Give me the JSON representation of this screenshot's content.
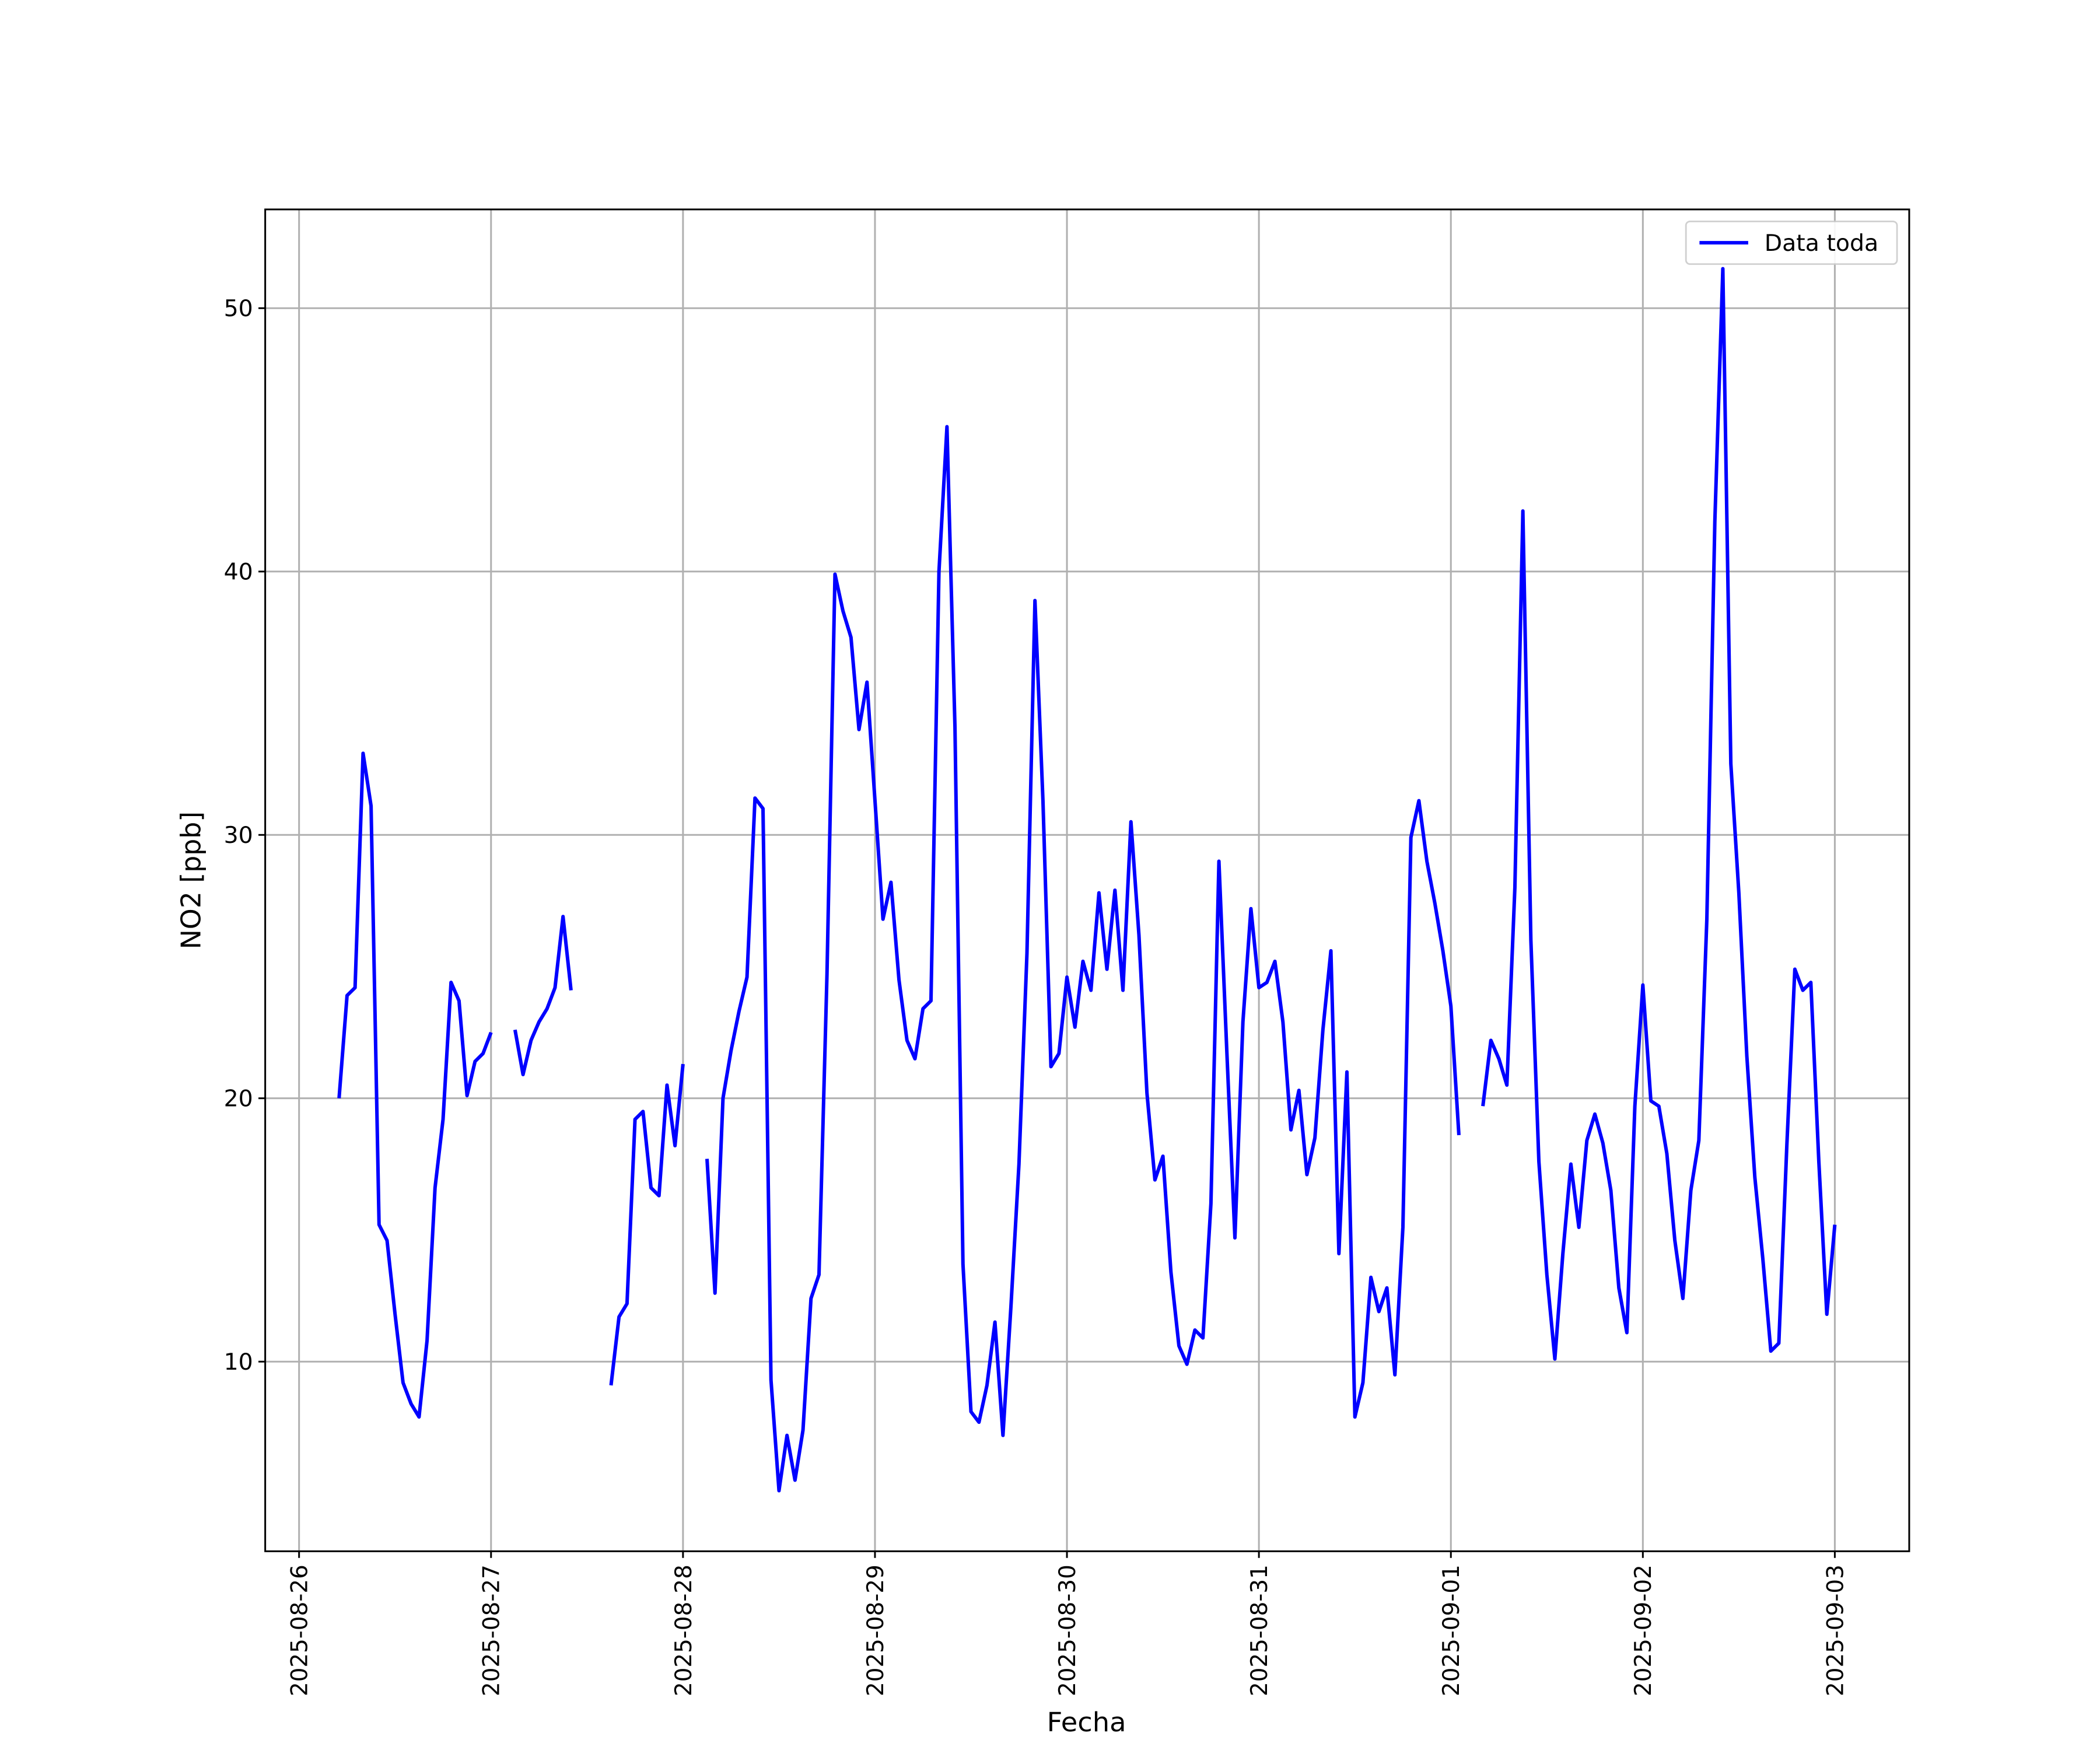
{
  "chart_data": {
    "type": "line",
    "xlabel": "Fecha",
    "ylabel": "NO2 [ppb]",
    "x": [
      "2025-08-26 05:00",
      "2025-08-26 06:00",
      "2025-08-26 07:00",
      "2025-08-26 08:00",
      "2025-08-26 09:00",
      "2025-08-26 10:00",
      "2025-08-26 11:00",
      "2025-08-26 12:00",
      "2025-08-26 13:00",
      "2025-08-26 14:00",
      "2025-08-26 15:00",
      "2025-08-26 16:00",
      "2025-08-26 17:00",
      "2025-08-26 18:00",
      "2025-08-26 19:00",
      "2025-08-26 20:00",
      "2025-08-26 21:00",
      "2025-08-26 22:00",
      "2025-08-26 23:00",
      "2025-08-27 00:00",
      "2025-08-27 01:00",
      "2025-08-27 02:00",
      "2025-08-27 03:00",
      "2025-08-27 04:00",
      "2025-08-27 05:00",
      "2025-08-27 06:00",
      "2025-08-27 07:00",
      "2025-08-27 08:00",
      "2025-08-27 09:00",
      "2025-08-27 10:00",
      "2025-08-27 11:00",
      "2025-08-27 12:00",
      "2025-08-27 13:00",
      "2025-08-27 14:00",
      "2025-08-27 15:00",
      "2025-08-27 16:00",
      "2025-08-27 17:00",
      "2025-08-27 18:00",
      "2025-08-27 19:00",
      "2025-08-27 20:00",
      "2025-08-27 21:00",
      "2025-08-27 22:00",
      "2025-08-27 23:00",
      "2025-08-28 00:00",
      "2025-08-28 01:00",
      "2025-08-28 02:00",
      "2025-08-28 03:00",
      "2025-08-28 04:00",
      "2025-08-28 05:00",
      "2025-08-28 06:00",
      "2025-08-28 07:00",
      "2025-08-28 08:00",
      "2025-08-28 09:00",
      "2025-08-28 10:00",
      "2025-08-28 11:00",
      "2025-08-28 12:00",
      "2025-08-28 13:00",
      "2025-08-28 14:00",
      "2025-08-28 15:00",
      "2025-08-28 16:00",
      "2025-08-28 17:00",
      "2025-08-28 18:00",
      "2025-08-28 19:00",
      "2025-08-28 20:00",
      "2025-08-28 21:00",
      "2025-08-28 22:00",
      "2025-08-28 23:00",
      "2025-08-29 00:00",
      "2025-08-29 01:00",
      "2025-08-29 02:00",
      "2025-08-29 03:00",
      "2025-08-29 04:00",
      "2025-08-29 05:00",
      "2025-08-29 06:00",
      "2025-08-29 07:00",
      "2025-08-29 08:00",
      "2025-08-29 09:00",
      "2025-08-29 10:00",
      "2025-08-29 11:00",
      "2025-08-29 12:00",
      "2025-08-29 13:00",
      "2025-08-29 14:00",
      "2025-08-29 15:00",
      "2025-08-29 16:00",
      "2025-08-29 17:00",
      "2025-08-29 18:00",
      "2025-08-29 19:00",
      "2025-08-29 20:00",
      "2025-08-29 21:00",
      "2025-08-29 22:00",
      "2025-08-29 23:00",
      "2025-08-30 00:00",
      "2025-08-30 01:00",
      "2025-08-30 02:00",
      "2025-08-30 03:00",
      "2025-08-30 04:00",
      "2025-08-30 05:00",
      "2025-08-30 06:00",
      "2025-08-30 07:00",
      "2025-08-30 08:00",
      "2025-08-30 09:00",
      "2025-08-30 10:00",
      "2025-08-30 11:00",
      "2025-08-30 12:00",
      "2025-08-30 13:00",
      "2025-08-30 14:00",
      "2025-08-30 15:00",
      "2025-08-30 16:00",
      "2025-08-30 17:00",
      "2025-08-30 18:00",
      "2025-08-30 19:00",
      "2025-08-30 20:00",
      "2025-08-30 21:00",
      "2025-08-30 22:00",
      "2025-08-30 23:00",
      "2025-08-31 00:00",
      "2025-08-31 01:00",
      "2025-08-31 02:00",
      "2025-08-31 03:00",
      "2025-08-31 04:00",
      "2025-08-31 05:00",
      "2025-08-31 06:00",
      "2025-08-31 07:00",
      "2025-08-31 08:00",
      "2025-08-31 09:00",
      "2025-08-31 10:00",
      "2025-08-31 11:00",
      "2025-08-31 12:00",
      "2025-08-31 13:00",
      "2025-08-31 14:00",
      "2025-08-31 15:00",
      "2025-08-31 16:00",
      "2025-08-31 17:00",
      "2025-08-31 18:00",
      "2025-08-31 19:00",
      "2025-08-31 20:00",
      "2025-08-31 21:00",
      "2025-08-31 22:00",
      "2025-08-31 23:00",
      "2025-09-01 00:00",
      "2025-09-01 01:00",
      "2025-09-01 02:00",
      "2025-09-01 03:00",
      "2025-09-01 04:00",
      "2025-09-01 05:00",
      "2025-09-01 06:00",
      "2025-09-01 07:00",
      "2025-09-01 08:00",
      "2025-09-01 09:00",
      "2025-09-01 10:00",
      "2025-09-01 11:00",
      "2025-09-01 12:00",
      "2025-09-01 13:00",
      "2025-09-01 14:00",
      "2025-09-01 15:00",
      "2025-09-01 16:00",
      "2025-09-01 17:00",
      "2025-09-01 18:00",
      "2025-09-01 19:00",
      "2025-09-01 20:00",
      "2025-09-01 21:00",
      "2025-09-01 22:00",
      "2025-09-01 23:00",
      "2025-09-02 00:00",
      "2025-09-02 01:00",
      "2025-09-02 02:00",
      "2025-09-02 03:00",
      "2025-09-02 04:00",
      "2025-09-02 05:00",
      "2025-09-02 06:00",
      "2025-09-02 07:00",
      "2025-09-02 08:00",
      "2025-09-02 09:00",
      "2025-09-02 10:00",
      "2025-09-02 11:00",
      "2025-09-02 12:00",
      "2025-09-02 13:00",
      "2025-09-02 14:00",
      "2025-09-02 15:00",
      "2025-09-02 16:00",
      "2025-09-02 17:00",
      "2025-09-02 18:00",
      "2025-09-02 19:00",
      "2025-09-02 20:00",
      "2025-09-02 21:00",
      "2025-09-02 22:00",
      "2025-09-02 23:00",
      "2025-09-03 00:00"
    ],
    "series": [
      {
        "name": "Data toda",
        "color": "#0000ff",
        "values": [
          20.0,
          23.9,
          24.2,
          33.1,
          31.1,
          15.2,
          14.6,
          11.8,
          9.2,
          8.4,
          7.9,
          10.8,
          16.6,
          19.2,
          24.4,
          23.7,
          20.1,
          21.4,
          21.7,
          22.5,
          null,
          null,
          22.6,
          20.9,
          22.2,
          22.9,
          23.4,
          24.2,
          26.9,
          24.1,
          null,
          null,
          null,
          null,
          9.1,
          11.7,
          12.2,
          19.2,
          19.5,
          16.6,
          16.3,
          20.5,
          18.2,
          21.3,
          null,
          null,
          17.7,
          12.6,
          20.0,
          21.8,
          23.3,
          24.6,
          31.4,
          31.0,
          9.3,
          5.1,
          7.2,
          5.5,
          7.4,
          12.4,
          13.3,
          24.7,
          39.9,
          38.5,
          37.5,
          34.0,
          35.8,
          31.3,
          26.8,
          28.2,
          24.5,
          22.2,
          21.5,
          23.4,
          23.7,
          40.0,
          45.5,
          34.1,
          13.7,
          8.1,
          7.7,
          9.1,
          11.5,
          7.2,
          12.1,
          17.5,
          25.5,
          38.9,
          31.3,
          21.2,
          21.7,
          24.6,
          22.7,
          25.2,
          24.1,
          27.8,
          24.9,
          27.9,
          24.1,
          30.5,
          26.2,
          20.2,
          16.9,
          17.8,
          13.4,
          10.6,
          9.9,
          11.2,
          10.9,
          16.0,
          29.0,
          21.7,
          14.7,
          22.9,
          27.2,
          24.2,
          24.4,
          25.2,
          22.9,
          18.8,
          20.3,
          17.1,
          18.5,
          22.6,
          25.6,
          14.1,
          21.0,
          7.9,
          9.2,
          13.2,
          11.9,
          12.8,
          9.5,
          15.1,
          29.9,
          31.3,
          29.0,
          27.4,
          25.6,
          23.5,
          18.6,
          null,
          null,
          19.7,
          22.2,
          21.5,
          20.5,
          28.0,
          42.3,
          26.0,
          17.6,
          13.3,
          10.1,
          14.1,
          17.5,
          15.1,
          18.4,
          19.4,
          18.3,
          16.5,
          12.8,
          11.1,
          19.7,
          24.3,
          19.9,
          19.7,
          17.9,
          14.6,
          12.4,
          16.5,
          18.4,
          26.8,
          41.9,
          51.5,
          32.7,
          27.8,
          21.6,
          17.0,
          13.9,
          10.4,
          10.7,
          18.2,
          24.9,
          24.1,
          24.4,
          17.6,
          11.8,
          15.2
        ]
      }
    ],
    "xlim": [
      "2025-08-25 19:46",
      "2025-09-03 09:18"
    ],
    "xticks": [
      "2025-08-26",
      "2025-08-27",
      "2025-08-28",
      "2025-08-29",
      "2025-08-30",
      "2025-08-31",
      "2025-09-01",
      "2025-09-02",
      "2025-09-03"
    ],
    "ylim": [
      2.8,
      53.75
    ],
    "yticks": [
      10,
      20,
      30,
      40,
      50
    ],
    "grid": true,
    "legend": "upper right"
  }
}
